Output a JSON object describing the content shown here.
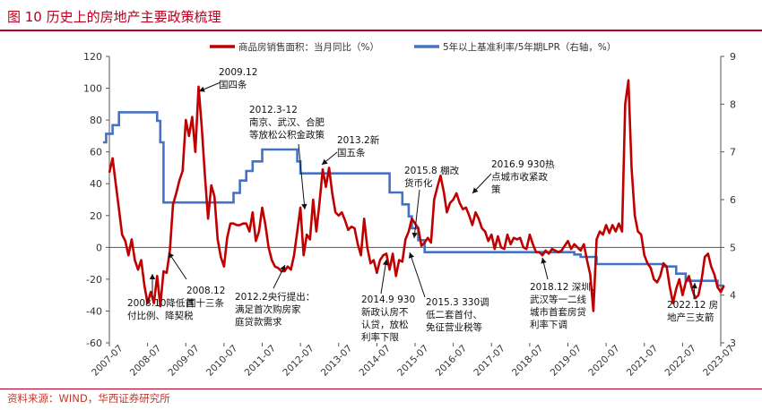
{
  "title": "图 10  历史上的房地产主要政策梳理",
  "source": "资料来源：WIND，华西证券研究所",
  "colors": {
    "sales": "#c00000",
    "lpr": "#4472c4",
    "brand": "#b8001f"
  },
  "chart_data": {
    "type": "line",
    "title": "",
    "legend_position": "top",
    "grid": false,
    "x_ticks": [
      "2007-07",
      "2008-07",
      "2009-07",
      "2010-07",
      "2011-07",
      "2012-07",
      "2013-07",
      "2014-07",
      "2015-07",
      "2016-07",
      "2017-07",
      "2018-07",
      "2019-07",
      "2020-07",
      "2021-07",
      "2022-07",
      "2023-07"
    ],
    "y_left": {
      "ylim": [
        -60,
        120
      ],
      "ticks": [
        "-60",
        "-40",
        "-20",
        "0",
        "20",
        "40",
        "60",
        "80",
        "100",
        "120"
      ]
    },
    "y_right": {
      "ylim": [
        3,
        9
      ],
      "ticks": [
        "3",
        "4",
        "5",
        "6",
        "7",
        "8",
        "9"
      ]
    },
    "series": [
      {
        "name": "商品房销售面积：当月同比（%）",
        "axis": "left",
        "points": [
          [
            "2007-07",
            47
          ],
          [
            "2007-08",
            56
          ],
          [
            "2007-09",
            40
          ],
          [
            "2007-10",
            24
          ],
          [
            "2007-11",
            8
          ],
          [
            "2007-12",
            4
          ],
          [
            "2008-01",
            -5
          ],
          [
            "2008-02",
            5
          ],
          [
            "2008-03",
            -8
          ],
          [
            "2008-04",
            -14
          ],
          [
            "2008-05",
            -8
          ],
          [
            "2008-06",
            -24
          ],
          [
            "2008-07",
            -35
          ],
          [
            "2008-08",
            -28
          ],
          [
            "2008-09",
            -35
          ],
          [
            "2008-10",
            -18
          ],
          [
            "2008-11",
            -37
          ],
          [
            "2008-12",
            -15
          ],
          [
            "2009-01",
            -16
          ],
          [
            "2009-02",
            -2
          ],
          [
            "2009-03",
            27
          ],
          [
            "2009-04",
            34
          ],
          [
            "2009-05",
            42
          ],
          [
            "2009-06",
            48
          ],
          [
            "2009-07",
            80
          ],
          [
            "2009-08",
            70
          ],
          [
            "2009-09",
            82
          ],
          [
            "2009-10",
            60
          ],
          [
            "2009-11",
            101
          ],
          [
            "2009-12",
            76
          ],
          [
            "2010-01",
            45
          ],
          [
            "2010-02",
            18
          ],
          [
            "2010-03",
            39
          ],
          [
            "2010-04",
            32
          ],
          [
            "2010-05",
            5
          ],
          [
            "2010-06",
            -6
          ],
          [
            "2010-07",
            -12
          ],
          [
            "2010-08",
            6
          ],
          [
            "2010-09",
            15
          ],
          [
            "2010-10",
            15
          ],
          [
            "2010-11",
            14
          ],
          [
            "2010-12",
            14
          ],
          [
            "2011-01",
            15
          ],
          [
            "2011-02",
            15
          ],
          [
            "2011-03",
            10
          ],
          [
            "2011-04",
            22
          ],
          [
            "2011-05",
            4
          ],
          [
            "2011-06",
            10
          ],
          [
            "2011-07",
            25
          ],
          [
            "2011-08",
            14
          ],
          [
            "2011-09",
            0
          ],
          [
            "2011-10",
            -8
          ],
          [
            "2011-11",
            -12
          ],
          [
            "2011-12",
            -13
          ],
          [
            "2012-01",
            -15
          ],
          [
            "2012-02",
            -15
          ],
          [
            "2012-03",
            -12
          ],
          [
            "2012-04",
            -14
          ],
          [
            "2012-05",
            -5
          ],
          [
            "2012-06",
            10
          ],
          [
            "2012-07",
            25
          ],
          [
            "2012-08",
            -5
          ],
          [
            "2012-09",
            8
          ],
          [
            "2012-10",
            5
          ],
          [
            "2012-11",
            30
          ],
          [
            "2012-12",
            10
          ],
          [
            "2013-01",
            28
          ],
          [
            "2013-02",
            49
          ],
          [
            "2013-03",
            38
          ],
          [
            "2013-04",
            50
          ],
          [
            "2013-05",
            34
          ],
          [
            "2013-06",
            22
          ],
          [
            "2013-07",
            20
          ],
          [
            "2013-08",
            22
          ],
          [
            "2013-09",
            17
          ],
          [
            "2013-10",
            11
          ],
          [
            "2013-11",
            13
          ],
          [
            "2013-12",
            12
          ],
          [
            "2014-01",
            2
          ],
          [
            "2014-02",
            -5
          ],
          [
            "2014-03",
            18
          ],
          [
            "2014-04",
            0
          ],
          [
            "2014-05",
            -10
          ],
          [
            "2014-06",
            -8
          ],
          [
            "2014-07",
            -16
          ],
          [
            "2014-08",
            -8
          ],
          [
            "2014-09",
            -5
          ],
          [
            "2014-10",
            -4
          ],
          [
            "2014-11",
            -14
          ],
          [
            "2014-12",
            -4
          ],
          [
            "2015-01",
            -18
          ],
          [
            "2015-02",
            -8
          ],
          [
            "2015-03",
            -9
          ],
          [
            "2015-04",
            5
          ],
          [
            "2015-05",
            10
          ],
          [
            "2015-06",
            18
          ],
          [
            "2015-07",
            15
          ],
          [
            "2015-08",
            12
          ],
          [
            "2015-09",
            1
          ],
          [
            "2015-10",
            3
          ],
          [
            "2015-11",
            6
          ],
          [
            "2015-12",
            3
          ],
          [
            "2016-01",
            30
          ],
          [
            "2016-02",
            38
          ],
          [
            "2016-03",
            45
          ],
          [
            "2016-04",
            35
          ],
          [
            "2016-05",
            22
          ],
          [
            "2016-06",
            28
          ],
          [
            "2016-07",
            30
          ],
          [
            "2016-08",
            34
          ],
          [
            "2016-09",
            28
          ],
          [
            "2016-10",
            24
          ],
          [
            "2016-11",
            25
          ],
          [
            "2016-12",
            20
          ],
          [
            "2017-01",
            14
          ],
          [
            "2017-02",
            22
          ],
          [
            "2017-03",
            18
          ],
          [
            "2017-04",
            12
          ],
          [
            "2017-05",
            10
          ],
          [
            "2017-06",
            4
          ],
          [
            "2017-07",
            8
          ],
          [
            "2017-08",
            -1
          ],
          [
            "2017-09",
            7
          ],
          [
            "2017-10",
            0
          ],
          [
            "2017-11",
            -1
          ],
          [
            "2017-12",
            8
          ],
          [
            "2018-01",
            2
          ],
          [
            "2018-02",
            6
          ],
          [
            "2018-03",
            5
          ],
          [
            "2018-04",
            6
          ],
          [
            "2018-05",
            0
          ],
          [
            "2018-06",
            -1
          ],
          [
            "2018-07",
            8
          ],
          [
            "2018-08",
            2
          ],
          [
            "2018-09",
            -3
          ],
          [
            "2018-10",
            -3
          ],
          [
            "2018-11",
            -5
          ],
          [
            "2018-12",
            -2
          ],
          [
            "2019-01",
            -4
          ],
          [
            "2019-02",
            -1
          ],
          [
            "2019-03",
            -2
          ],
          [
            "2019-04",
            -3
          ],
          [
            "2019-05",
            -2
          ],
          [
            "2019-06",
            1
          ],
          [
            "2019-07",
            4
          ],
          [
            "2019-08",
            -1
          ],
          [
            "2019-09",
            2
          ],
          [
            "2019-10",
            0
          ],
          [
            "2019-11",
            -2
          ],
          [
            "2019-12",
            2
          ],
          [
            "2020-01",
            -8
          ],
          [
            "2020-02",
            -17
          ],
          [
            "2020-03",
            -40
          ],
          [
            "2020-04",
            5
          ],
          [
            "2020-05",
            10
          ],
          [
            "2020-06",
            8
          ],
          [
            "2020-07",
            14
          ],
          [
            "2020-08",
            9
          ],
          [
            "2020-09",
            14
          ],
          [
            "2020-10",
            10
          ],
          [
            "2020-11",
            15
          ],
          [
            "2020-12",
            10
          ],
          [
            "2021-01",
            90
          ],
          [
            "2021-02",
            105
          ],
          [
            "2021-03",
            50
          ],
          [
            "2021-04",
            20
          ],
          [
            "2021-05",
            10
          ],
          [
            "2021-06",
            8
          ],
          [
            "2021-07",
            -5
          ],
          [
            "2021-08",
            -10
          ],
          [
            "2021-09",
            -13
          ],
          [
            "2021-10",
            -20
          ],
          [
            "2021-11",
            -22
          ],
          [
            "2021-12",
            -18
          ],
          [
            "2022-01",
            -10
          ],
          [
            "2022-02",
            -12
          ],
          [
            "2022-03",
            -25
          ],
          [
            "2022-04",
            -35
          ],
          [
            "2022-05",
            -26
          ],
          [
            "2022-06",
            -20
          ],
          [
            "2022-07",
            -30
          ],
          [
            "2022-08",
            -22
          ],
          [
            "2022-09",
            -18
          ],
          [
            "2022-10",
            -26
          ],
          [
            "2022-11",
            -32
          ],
          [
            "2022-12",
            -30
          ],
          [
            "2023-01",
            -20
          ],
          [
            "2023-02",
            -6
          ],
          [
            "2023-03",
            -4
          ],
          [
            "2023-04",
            -12
          ],
          [
            "2023-05",
            -17
          ],
          [
            "2023-06",
            -25
          ],
          [
            "2023-07",
            -28
          ],
          [
            "2023-08",
            -24
          ]
        ]
      },
      {
        "name": "5年以上基准利率/5年期LPR（右轴，%）",
        "axis": "right",
        "points": [
          [
            "2007-05",
            7.2
          ],
          [
            "2007-06",
            7.38
          ],
          [
            "2007-08",
            7.56
          ],
          [
            "2007-10",
            7.83
          ],
          [
            "2008-10",
            7.83
          ],
          [
            "2008-10",
            7.65
          ],
          [
            "2008-11",
            7.2
          ],
          [
            "2008-12",
            6.57
          ],
          [
            "2008-12",
            6.12
          ],
          [
            "2008-12",
            5.94
          ],
          [
            "2010-10",
            5.94
          ],
          [
            "2010-10",
            6.14
          ],
          [
            "2010-12",
            6.4
          ],
          [
            "2011-02",
            6.6
          ],
          [
            "2011-04",
            6.8
          ],
          [
            "2011-07",
            7.05
          ],
          [
            "2012-06",
            7.05
          ],
          [
            "2012-06",
            6.8
          ],
          [
            "2012-07",
            6.55
          ],
          [
            "2014-11",
            6.55
          ],
          [
            "2014-11",
            6.15
          ],
          [
            "2015-03",
            5.9
          ],
          [
            "2015-05",
            5.65
          ],
          [
            "2015-06",
            5.4
          ],
          [
            "2015-08",
            5.15
          ],
          [
            "2015-10",
            4.9
          ],
          [
            "2019-08",
            4.9
          ],
          [
            "2019-09",
            4.85
          ],
          [
            "2019-11",
            4.8
          ],
          [
            "2020-04",
            4.65
          ],
          [
            "2022-01",
            4.6
          ],
          [
            "2022-05",
            4.45
          ],
          [
            "2022-08",
            4.3
          ],
          [
            "2023-06",
            4.2
          ],
          [
            "2023-08",
            4.2
          ]
        ]
      }
    ],
    "annotations": [
      {
        "id": "ann-2009-12",
        "lines": [
          "2009.12",
          "国四条"
        ],
        "date": "2009-12"
      },
      {
        "id": "ann-2012-03",
        "lines": [
          "2012.3-12",
          "南京、武汉、合肥",
          "等放松公积金政策"
        ],
        "date": "2012-11"
      },
      {
        "id": "ann-2013-02",
        "lines": [
          "2013.2新",
          "国五条"
        ],
        "date": "2013-02"
      },
      {
        "id": "ann-2015-08",
        "lines": [
          "2015.8 棚改",
          "货币化"
        ],
        "date": "2015-08"
      },
      {
        "id": "ann-2016-09",
        "lines": [
          "2016.9 930热",
          "点城市收紧政",
          "策"
        ],
        "date": "2016-09"
      },
      {
        "id": "ann-2008-12",
        "lines": [
          "2008.12",
          "国十三条"
        ],
        "date": "2008-12"
      },
      {
        "id": "ann-2008-10",
        "lines": [
          "2008.10降低首",
          "付比例、降契税"
        ],
        "date": "2008-10"
      },
      {
        "id": "ann-2012-02",
        "lines": [
          "2012.2央行提出：",
          "满足首次购房家",
          "庭贷款需求"
        ],
        "date": "2012-02"
      },
      {
        "id": "ann-2014-09",
        "lines": [
          "2014.9 930",
          "新政认房不",
          "认贷，放松",
          "利率下限"
        ],
        "date": "2014-09"
      },
      {
        "id": "ann-2015-03",
        "lines": [
          "2015.3 330调",
          "低二套首付、",
          "免征营业税等"
        ],
        "date": "2015-03"
      },
      {
        "id": "ann-2018-12",
        "lines": [
          "2018.12 深圳、",
          "武汉等一二线",
          "城市首套房贷",
          "利率下调"
        ],
        "date": "2018-12"
      },
      {
        "id": "ann-2022-12",
        "lines": [
          "2022.12 房",
          "地产三支箭"
        ],
        "date": "2022-12"
      }
    ]
  }
}
